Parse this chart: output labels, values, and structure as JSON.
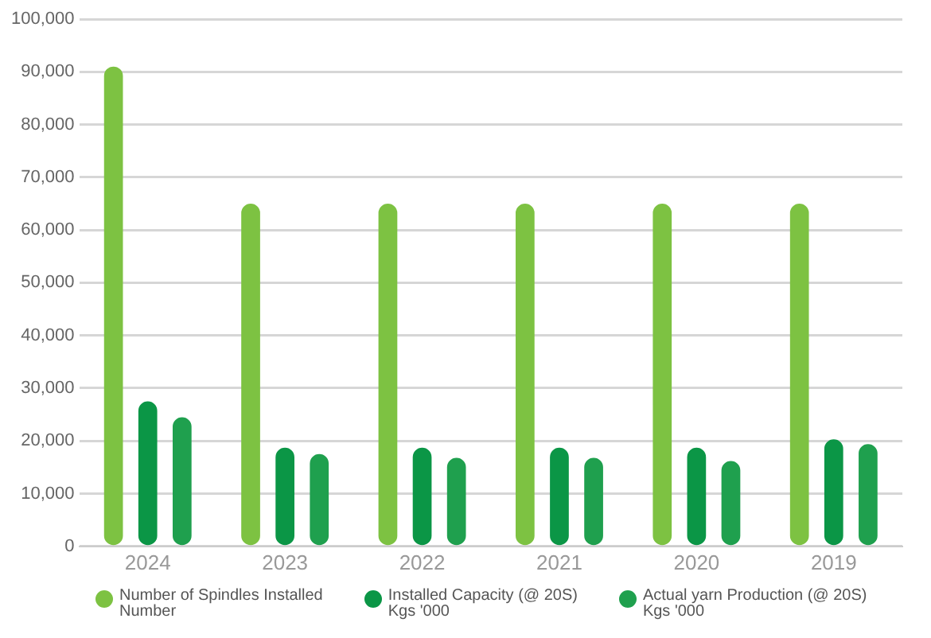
{
  "chart_data": {
    "type": "bar",
    "categories": [
      "2024",
      "2023",
      "2022",
      "2021",
      "2020",
      "2019"
    ],
    "series": [
      {
        "name": "Number of Spindles Installed\nNumber",
        "color": "#7dc242",
        "values": [
          91000,
          65000,
          65000,
          65000,
          65000,
          65000
        ]
      },
      {
        "name": "Installed Capacity (@ 20S)\nKgs '000",
        "color": "#0b9646",
        "values": [
          27500,
          18700,
          18700,
          18700,
          18700,
          20300
        ]
      },
      {
        "name": "Actual yarn Production (@ 20S)\nKgs '000",
        "color": "#1fa04e",
        "values": [
          24500,
          17500,
          16800,
          16800,
          16200,
          19400
        ]
      }
    ],
    "ylim": [
      0,
      100000
    ],
    "yticks": [
      0,
      {
        "value": 10000,
        "label": "10,000"
      },
      {
        "value": 20000,
        "label": "20,000"
      },
      {
        "value": 30000,
        "label": "30,000"
      },
      {
        "value": 40000,
        "label": "40,000"
      },
      {
        "value": 50000,
        "label": "50,000"
      },
      {
        "value": 60000,
        "label": "60,000"
      },
      {
        "value": 70000,
        "label": "70,000"
      },
      {
        "value": 80000,
        "label": "80,000"
      },
      {
        "value": 90000,
        "label": "90,000"
      },
      {
        "value": 100000,
        "label": "100,000"
      }
    ],
    "grid": "y",
    "legend": "bottom"
  }
}
